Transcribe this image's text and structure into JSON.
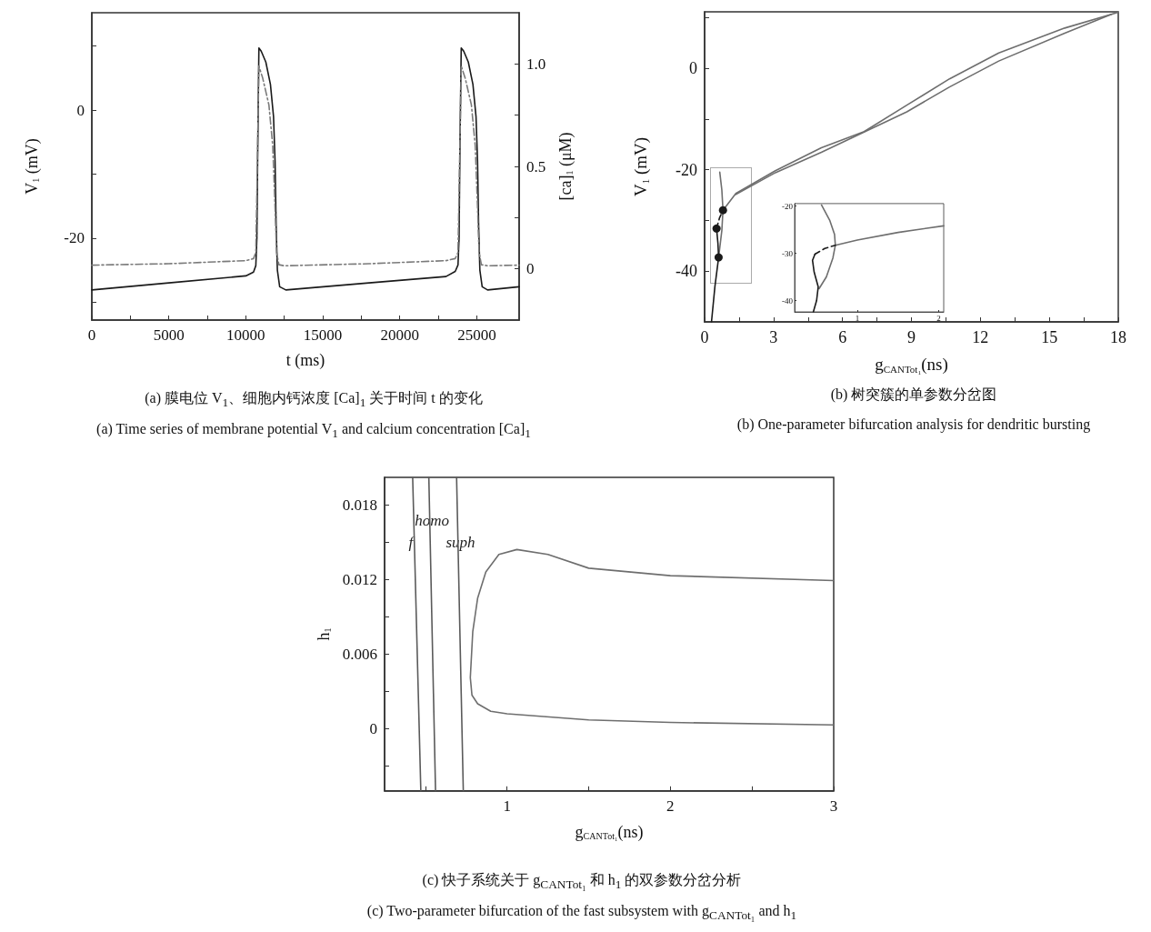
{
  "chart_data": [
    {
      "type": "line",
      "xlabel": "t (ms)",
      "ylabel": "V$_{1}$ (mV)",
      "y2label": "[ca]$_{1}$ (μM)",
      "xlim": [
        0,
        27750
      ],
      "ylim": [
        -32.8,
        15.2
      ],
      "y2lim": [
        -0.25,
        1.25
      ],
      "xticks": [
        0,
        {
          "value": 2500,
          "label": null
        },
        5000,
        {
          "value": 7500,
          "label": null
        },
        10000,
        {
          "value": 12500,
          "label": null
        },
        15000,
        {
          "value": 17500,
          "label": null
        },
        20000,
        {
          "value": 22500,
          "label": null
        },
        25000
      ],
      "yticks": [
        {
          "value": -30,
          "label": null
        },
        -20,
        {
          "value": -10,
          "label": null
        },
        0,
        {
          "value": 10,
          "label": null
        }
      ],
      "y2ticks": [
        0,
        {
          "value": 0.25,
          "label": null
        },
        0.5,
        {
          "value": 0.75,
          "label": null
        },
        {
          "value": 1,
          "label": "1.0"
        }
      ],
      "series": [
        {
          "color": "#1a1a1a",
          "line_style": "solid",
          "x": [
            0,
            5000,
            10000,
            10500,
            10650,
            10720,
            10780,
            10850,
            11000,
            11300,
            11600,
            11800,
            11900,
            11970,
            12050,
            12200,
            12600,
            18000,
            23000,
            23600,
            23780,
            23850,
            23910,
            23990,
            24150,
            24450,
            24750,
            24950,
            25050,
            25120,
            25200,
            25350,
            25700,
            27750
          ],
          "values": [
            -28.1,
            -27.0,
            -25.9,
            -25.3,
            -24.3,
            -20,
            -5,
            9.7,
            9.2,
            7.5,
            4,
            -1,
            -8,
            -18,
            -25,
            -27.6,
            -28.1,
            -27.0,
            -26.0,
            -25.2,
            -24.2,
            -20,
            -5,
            9.7,
            9.2,
            7.5,
            4,
            -1,
            -8,
            -18,
            -25,
            -27.6,
            -28.1,
            -27.6
          ]
        },
        {
          "color": "#7a7a7a",
          "line_style": "dashdot",
          "axis": "y2",
          "x": [
            0,
            5000,
            10000,
            10500,
            10650,
            10750,
            10850,
            11100,
            11500,
            11750,
            11900,
            12000,
            12150,
            12500,
            18000,
            23000,
            23600,
            23780,
            23880,
            23990,
            24250,
            24650,
            24900,
            25050,
            25150,
            25300,
            25700,
            27750
          ],
          "values": [
            0.018,
            0.025,
            0.04,
            0.05,
            0.08,
            0.5,
            0.99,
            0.93,
            0.8,
            0.6,
            0.3,
            0.08,
            0.02,
            0.015,
            0.025,
            0.04,
            0.05,
            0.08,
            0.5,
            0.99,
            0.93,
            0.8,
            0.6,
            0.3,
            0.08,
            0.02,
            0.015,
            0.018
          ]
        }
      ],
      "annotations": [
        "(a) 膜电位 V$_{1}$、细胞内钙浓度 [Ca]$_{1}$ 关于时间 t 的变化",
        "(a) Time series of membrane potential V$_{1}$ and calcium concentration [Ca]$_{1}$"
      ]
    },
    {
      "type": "line",
      "xlabel": "g$_{CANTot₁}$(ns)",
      "ylabel": "V$_{1}$ (mV)",
      "xlim": [
        0,
        18
      ],
      "ylim": [
        -50,
        11.1
      ],
      "xticks": [
        0,
        {
          "value": 1.5,
          "label": null
        },
        3,
        {
          "value": 4.5,
          "label": null
        },
        6,
        {
          "value": 7.5,
          "label": null
        },
        9,
        {
          "value": 10.5,
          "label": null
        },
        12,
        {
          "value": 13.5,
          "label": null
        },
        15,
        {
          "value": 16.5,
          "label": null
        },
        18
      ],
      "yticks": [
        -40,
        {
          "value": -30,
          "label": null
        },
        -20,
        {
          "value": -10,
          "label": null
        },
        0,
        {
          "value": 10,
          "label": null
        }
      ],
      "series": [
        {
          "color": "#6e6e6e",
          "line_style": "solid",
          "x": [
            0.8,
            1.36,
            3.08,
            5.08,
            6.94,
            8.8,
            10.66,
            12.8,
            15.67,
            18
          ],
          "values": [
            -28,
            -24.7,
            -20.2,
            -15.7,
            -12.5,
            -7.3,
            -2.1,
            3.0,
            7.9,
            11
          ]
        },
        {
          "color": "#6e6e6e",
          "line_style": "solid",
          "x": [
            1.36,
            3.08,
            5.08,
            6.94,
            8.8,
            10.66,
            12.8,
            15.67,
            17.7
          ],
          "values": [
            -24.9,
            -20.6,
            -16.6,
            -12.6,
            -8.6,
            -3.7,
            1.4,
            6.9,
            10.6
          ]
        },
        {
          "color": "#6e6e6e",
          "line_style": "solid",
          "x": [
            0.66,
            0.75,
            0.8,
            0.75,
            0.61
          ],
          "values": [
            -20.5,
            -24,
            -28,
            -32,
            -37.3
          ]
        },
        {
          "color": "#1a1a1a",
          "line_style": "dashed",
          "x": [
            0.52,
            0.65,
            0.8
          ],
          "values": [
            -31.6,
            -29.5,
            -28
          ]
        },
        {
          "color": "#1a1a1a",
          "line_style": "solid",
          "x": [
            0.52,
            0.58,
            0.61,
            0.45,
            0.3
          ],
          "values": [
            -31.6,
            -34.5,
            -37.3,
            -43,
            -50
          ]
        },
        {
          "type": "scatter",
          "marker": "circle",
          "color": "#1a1a1a",
          "x": [
            0.8,
            0.52,
            0.61
          ],
          "values": [
            -28,
            -31.6,
            -37.3
          ]
        }
      ],
      "annotations": [
        "(b) 树突簇的单参数分岔图",
        "(b) One-parameter bifurcation analysis for dendritic bursting"
      ]
    },
    {
      "type": "line",
      "xlim": [
        0.23,
        2.06
      ],
      "ylim": [
        -42.4,
        -19.5
      ],
      "xticks": [
        1,
        2
      ],
      "yticks": [
        -40,
        -30,
        -20
      ],
      "series": [
        {
          "color": "#6e6e6e",
          "line_style": "solid",
          "x": [
            0.56,
            0.66,
            0.72,
            0.73,
            0.7,
            0.62,
            0.53
          ],
          "values": [
            -19.8,
            -23,
            -26,
            -28.3,
            -31,
            -35,
            -37.5
          ]
        },
        {
          "color": "#6e6e6e",
          "line_style": "solid",
          "x": [
            0.73,
            1,
            1.5,
            2.06
          ],
          "values": [
            -28.3,
            -27.2,
            -25.6,
            -24.2
          ]
        },
        {
          "color": "#1a1a1a",
          "line_style": "dashed",
          "x": [
            0.48,
            0.6,
            0.73
          ],
          "values": [
            -30.2,
            -29,
            -28.3
          ]
        },
        {
          "color": "#1a1a1a",
          "line_style": "solid",
          "x": [
            0.48,
            0.45,
            0.47,
            0.52,
            0.5,
            0.46
          ],
          "values": [
            -30.2,
            -31.5,
            -34,
            -37.1,
            -40,
            -42.4
          ]
        }
      ]
    },
    {
      "type": "line",
      "xlabel": "g$_{CANTot₁}$(ns)",
      "ylabel": "h$_{1}$",
      "xlim": [
        0.25,
        3
      ],
      "ylim": [
        -0.005,
        0.0202
      ],
      "xticks": [
        {
          "value": 0.5,
          "label": null
        },
        1,
        {
          "value": 1.5,
          "label": null
        },
        2,
        {
          "value": 2.5,
          "label": null
        },
        3
      ],
      "yticks": [
        {
          "value": -0.003,
          "label": null
        },
        0,
        {
          "value": 0.003,
          "label": null
        },
        0.006,
        {
          "value": 0.009,
          "label": null
        },
        0.012,
        {
          "value": 0.015,
          "label": null
        },
        0.018
      ],
      "series": [
        {
          "color": "#5a5a5a",
          "line_style": "solid",
          "x": [
            0.422,
            0.472
          ],
          "values": [
            0.0202,
            -0.005
          ]
        },
        {
          "color": "#5a5a5a",
          "line_style": "solid",
          "x": [
            0.521,
            0.562
          ],
          "values": [
            0.0202,
            -0.005
          ]
        },
        {
          "color": "#5a5a5a",
          "line_style": "solid",
          "x": [
            0.691,
            0.732
          ],
          "values": [
            0.0202,
            -0.005
          ]
        },
        {
          "color": "#6e6e6e",
          "line_style": "solid",
          "x": [
            3,
            2,
            1.5,
            1.25,
            1.06,
            0.95,
            0.87,
            0.82,
            0.79,
            0.775,
            0.785,
            0.82,
            0.9,
            1.0,
            1.5,
            2,
            3
          ],
          "values": [
            0.0119,
            0.0123,
            0.0129,
            0.014,
            0.0144,
            0.014,
            0.0126,
            0.0105,
            0.0078,
            0.0041,
            0.0027,
            0.002,
            0.0014,
            0.0012,
            0.0007,
            0.0005,
            0.0003
          ]
        }
      ],
      "annotations": [
        {
          "text": "f",
          "x": 0.41,
          "y": 0.015
        },
        {
          "text": "homo",
          "x": 0.54,
          "y": 0.0167
        },
        {
          "text": "suph",
          "x": 0.715,
          "y": 0.015
        },
        "(c) 快子系统关于 g$_{CANTot₁}$ 和 h$_{1}$ 的双参数分岔分析",
        "(c) Two-parameter bifurcation of the fast subsystem with g$_{CANTot₁}$ and h$_{1}$"
      ]
    }
  ]
}
